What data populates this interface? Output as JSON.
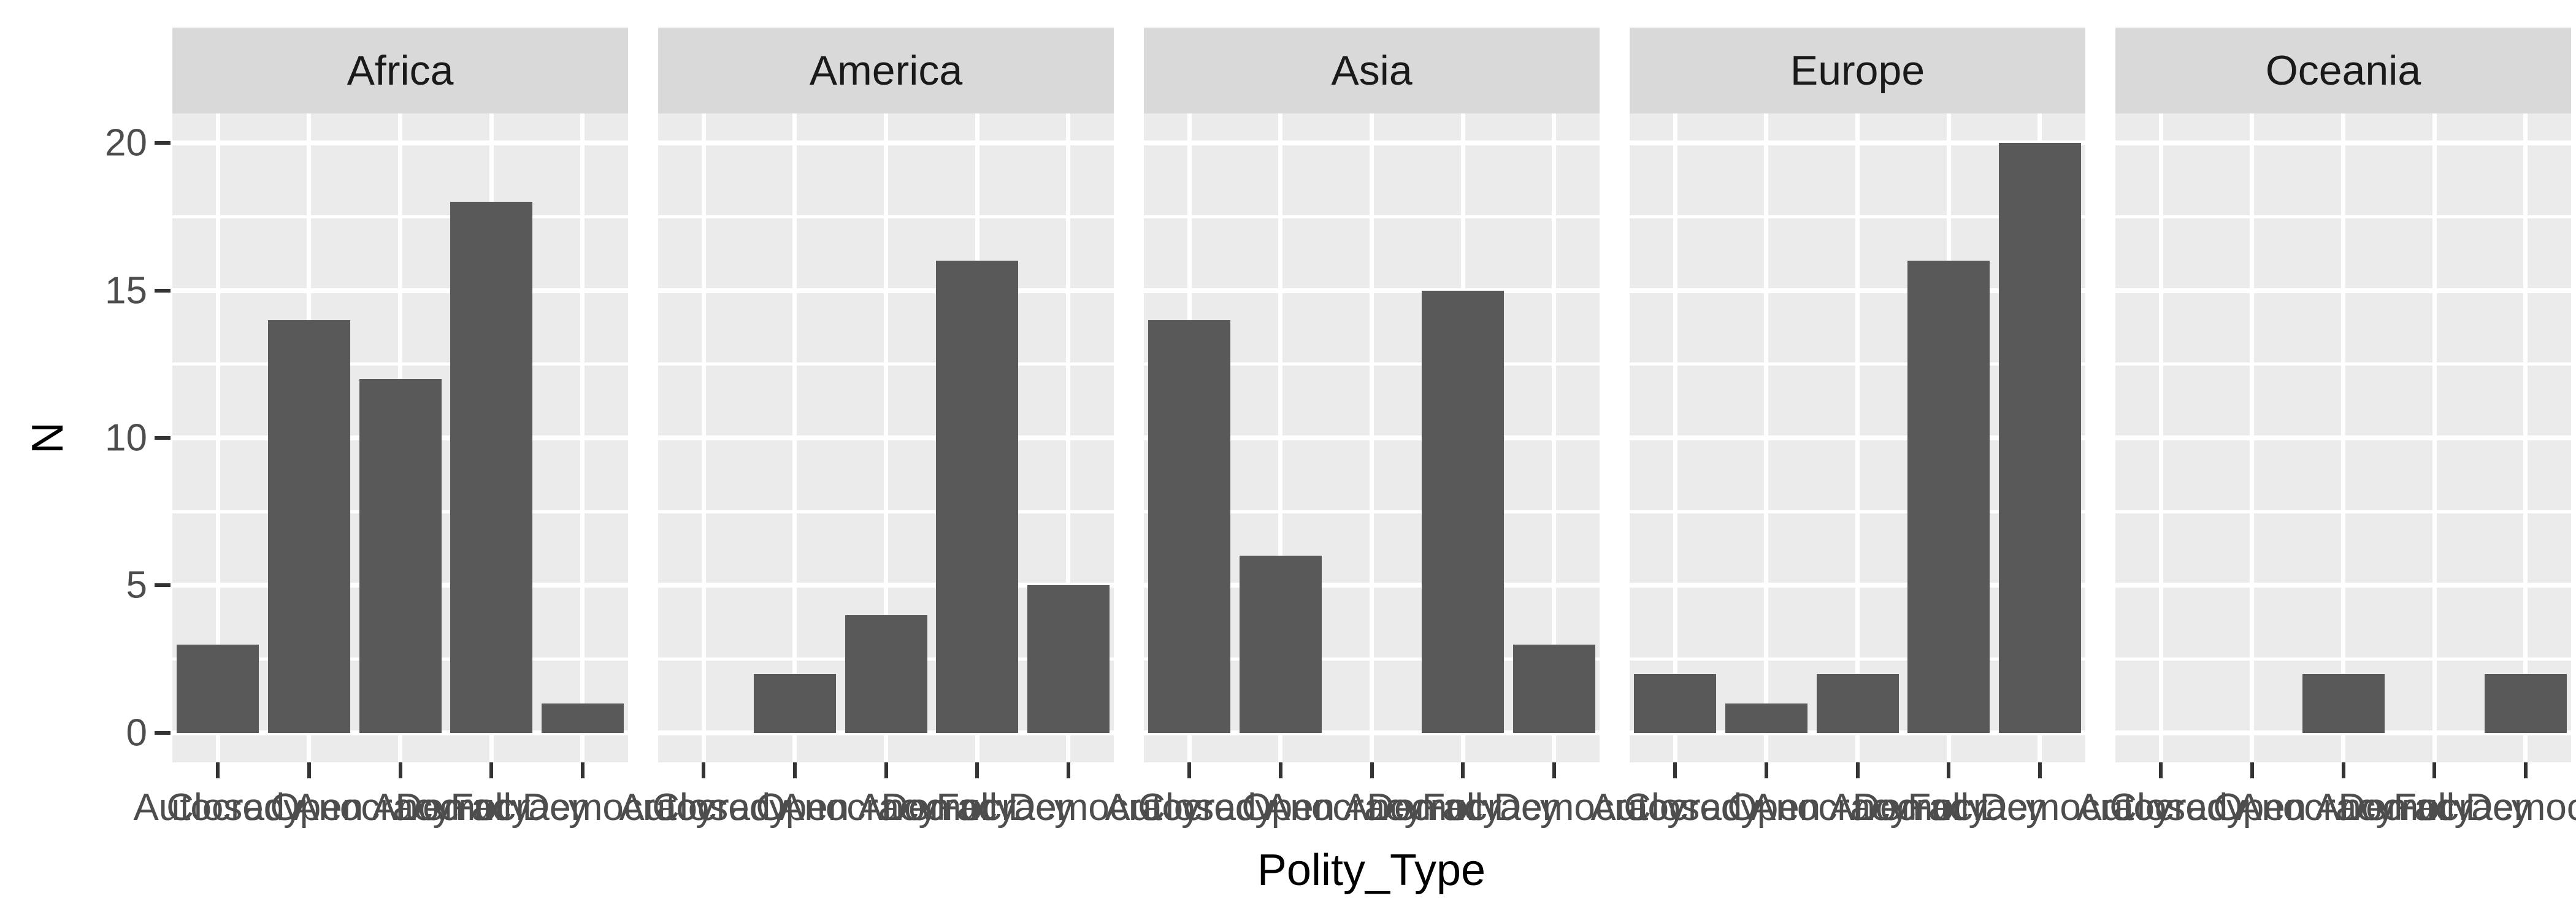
{
  "chart_data": {
    "type": "bar",
    "title": "",
    "xlabel": "Polity_Type",
    "ylabel": "N",
    "categories": [
      "Autocracy",
      "Closed Anocracy",
      "Open Anocracy",
      "Democracy",
      "Full Democracy"
    ],
    "facets": [
      {
        "label": "Africa",
        "values": [
          3,
          14,
          12,
          18,
          1
        ]
      },
      {
        "label": "America",
        "values": [
          0,
          2,
          4,
          16,
          5
        ]
      },
      {
        "label": "Asia",
        "values": [
          14,
          6,
          0,
          15,
          3
        ]
      },
      {
        "label": "Europe",
        "values": [
          2,
          1,
          2,
          16,
          20
        ]
      },
      {
        "label": "Oceania",
        "values": [
          0,
          0,
          2,
          0,
          2
        ]
      }
    ],
    "y_ticks": [
      0,
      5,
      10,
      15,
      20
    ],
    "y_minor_ticks": [
      2.5,
      7.5,
      12.5,
      17.5
    ],
    "ylim": [
      -1,
      21
    ],
    "legend_position": "none",
    "grid": "on",
    "colors": {
      "bar_fill": "#595959",
      "panel_background": "#EBEBEB",
      "strip_background": "#D9D9D9",
      "grid_line": "#FFFFFF",
      "axis_tick_mark": "#333333",
      "axis_text": "#4D4D4D",
      "strip_text": "#1A1A1A",
      "axis_title": "#000000"
    }
  }
}
